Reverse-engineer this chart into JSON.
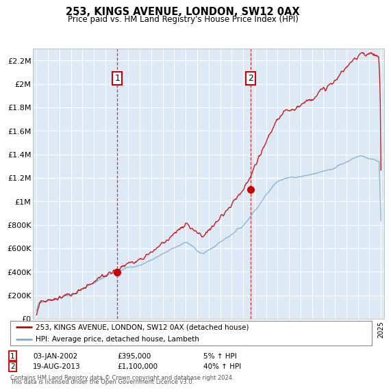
{
  "title": "253, KINGS AVENUE, LONDON, SW12 0AX",
  "subtitle": "Price paid vs. HM Land Registry's House Price Index (HPI)",
  "legend_line1": "253, KINGS AVENUE, LONDON, SW12 0AX (detached house)",
  "legend_line2": "HPI: Average price, detached house, Lambeth",
  "sale1_date": "03-JAN-2002",
  "sale1_price": "£395,000",
  "sale1_hpi": "5% ↑ HPI",
  "sale1_year": 2002.04,
  "sale1_value": 395000,
  "sale2_date": "19-AUG-2013",
  "sale2_price": "£1,100,000",
  "sale2_hpi": "40% ↑ HPI",
  "sale2_year": 2013.63,
  "sale2_value": 1100000,
  "footer1": "Contains HM Land Registry data © Crown copyright and database right 2024.",
  "footer2": "This data is licensed under the Open Government Licence v3.0.",
  "bg_color": "#dde9f5",
  "red_color": "#cc0000",
  "blue_color": "#7aadd4",
  "ylim_max": 2300000,
  "xmin": 1994.7,
  "xmax": 2025.3,
  "yticks": [
    0,
    200000,
    400000,
    600000,
    800000,
    1000000,
    1200000,
    1400000,
    1600000,
    1800000,
    2000000,
    2200000
  ],
  "ylabels": [
    "£0",
    "£200K",
    "£400K",
    "£600K",
    "£800K",
    "£1M",
    "£1.2M",
    "£1.4M",
    "£1.6M",
    "£1.8M",
    "£2M",
    "£2.2M"
  ]
}
